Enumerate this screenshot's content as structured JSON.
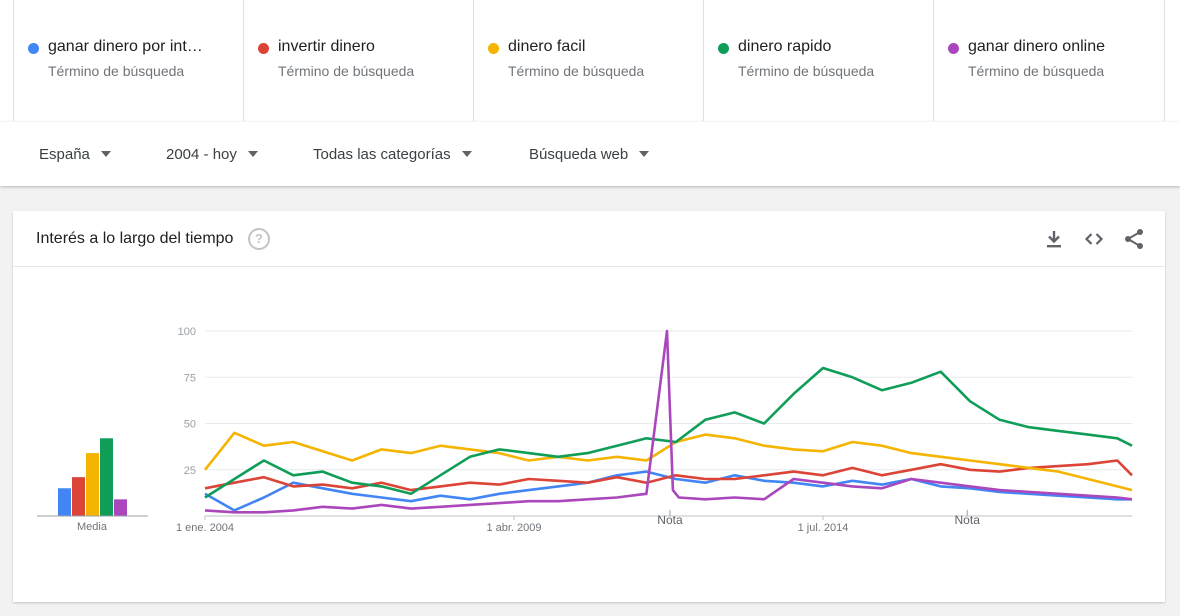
{
  "terms": [
    {
      "name": "ganar dinero por int…",
      "subtitle": "Término de búsqueda",
      "color": "#4285f4"
    },
    {
      "name": "invertir dinero",
      "subtitle": "Término de búsqueda",
      "color": "#db4437"
    },
    {
      "name": "dinero facil",
      "subtitle": "Término de búsqueda",
      "color": "#f4b400"
    },
    {
      "name": "dinero rapido",
      "subtitle": "Término de búsqueda",
      "color": "#0f9d58"
    },
    {
      "name": "ganar dinero online",
      "subtitle": "Término de búsqueda",
      "color": "#ab47bc"
    }
  ],
  "filters": {
    "region": "España",
    "period": "2004 - hoy",
    "category": "Todas las categorías",
    "search_type": "Búsqueda web"
  },
  "card": {
    "title": "Interés a lo largo del tiempo",
    "help_icon_text": "?",
    "actions": [
      "download-icon",
      "embed-code-icon",
      "share-icon"
    ]
  },
  "chart_data": {
    "type": "line",
    "ylim": [
      0,
      100
    ],
    "yticks": [
      "100",
      "75",
      "50",
      "25"
    ],
    "x_tick_labels": [
      "1 ene. 2004",
      "1 abr. 2009",
      "1 jul. 2014"
    ],
    "x_tick_positions": [
      2004.0,
      2009.25,
      2014.5
    ],
    "xlim": [
      2004.0,
      2019.75
    ],
    "annotations": [
      {
        "label": "Nota",
        "x": 2011.9
      },
      {
        "label": "Nota",
        "x": 2016.95
      }
    ],
    "average": {
      "label": "Media",
      "values": [
        15,
        21,
        34,
        42,
        9
      ]
    },
    "series": [
      {
        "color": "#4285f4",
        "x": [
          2004.0,
          2004.5,
          2005.0,
          2005.5,
          2006.0,
          2006.5,
          2007.0,
          2007.5,
          2008.0,
          2008.5,
          2009.0,
          2009.5,
          2010.0,
          2010.5,
          2011.0,
          2011.5,
          2012.0,
          2012.5,
          2013.0,
          2013.5,
          2014.0,
          2014.5,
          2015.0,
          2015.5,
          2016.0,
          2016.5,
          2017.0,
          2017.5,
          2018.0,
          2018.5,
          2019.0,
          2019.5,
          2019.75
        ],
        "values": [
          12,
          3,
          10,
          18,
          15,
          12,
          10,
          8,
          11,
          9,
          12,
          14,
          16,
          18,
          22,
          24,
          20,
          18,
          22,
          19,
          18,
          16,
          19,
          17,
          20,
          16,
          15,
          13,
          12,
          11,
          10,
          9,
          9
        ]
      },
      {
        "color": "#db4437",
        "x": [
          2004.0,
          2004.5,
          2005.0,
          2005.5,
          2006.0,
          2006.5,
          2007.0,
          2007.5,
          2008.0,
          2008.5,
          2009.0,
          2009.5,
          2010.0,
          2010.5,
          2011.0,
          2011.5,
          2012.0,
          2012.5,
          2013.0,
          2013.5,
          2014.0,
          2014.5,
          2015.0,
          2015.5,
          2016.0,
          2016.5,
          2017.0,
          2017.5,
          2018.0,
          2018.5,
          2019.0,
          2019.5,
          2019.75
        ],
        "values": [
          15,
          18,
          21,
          16,
          17,
          15,
          18,
          14,
          16,
          18,
          17,
          20,
          19,
          18,
          21,
          18,
          22,
          20,
          20,
          22,
          24,
          22,
          26,
          22,
          25,
          28,
          25,
          24,
          26,
          27,
          28,
          30,
          22
        ]
      },
      {
        "color": "#f4b400",
        "x": [
          2004.0,
          2004.5,
          2005.0,
          2005.5,
          2006.0,
          2006.5,
          2007.0,
          2007.5,
          2008.0,
          2008.5,
          2009.0,
          2009.5,
          2010.0,
          2010.5,
          2011.0,
          2011.5,
          2012.0,
          2012.5,
          2013.0,
          2013.5,
          2014.0,
          2014.5,
          2015.0,
          2015.5,
          2016.0,
          2016.5,
          2017.0,
          2017.5,
          2018.0,
          2018.5,
          2019.0,
          2019.5,
          2019.75
        ],
        "values": [
          25,
          45,
          38,
          40,
          35,
          30,
          36,
          34,
          38,
          36,
          34,
          30,
          32,
          30,
          32,
          30,
          40,
          44,
          42,
          38,
          36,
          35,
          40,
          38,
          34,
          32,
          30,
          28,
          26,
          24,
          20,
          16,
          14
        ]
      },
      {
        "color": "#0f9d58",
        "x": [
          2004.0,
          2004.5,
          2005.0,
          2005.5,
          2006.0,
          2006.5,
          2007.0,
          2007.5,
          2008.0,
          2008.5,
          2009.0,
          2009.5,
          2010.0,
          2010.5,
          2011.0,
          2011.5,
          2012.0,
          2012.5,
          2013.0,
          2013.5,
          2014.0,
          2014.5,
          2015.0,
          2015.5,
          2016.0,
          2016.5,
          2017.0,
          2017.5,
          2018.0,
          2018.5,
          2019.0,
          2019.5,
          2019.75
        ],
        "values": [
          10,
          20,
          30,
          22,
          24,
          18,
          16,
          12,
          22,
          32,
          36,
          34,
          32,
          34,
          38,
          42,
          40,
          52,
          56,
          50,
          66,
          80,
          75,
          68,
          72,
          78,
          62,
          52,
          48,
          46,
          44,
          42,
          38
        ]
      },
      {
        "color": "#ab47bc",
        "x": [
          2004.0,
          2004.5,
          2005.0,
          2005.5,
          2006.0,
          2006.5,
          2007.0,
          2007.5,
          2008.0,
          2008.5,
          2009.0,
          2009.5,
          2010.0,
          2010.5,
          2011.0,
          2011.5,
          2011.85,
          2011.95,
          2012.05,
          2012.5,
          2013.0,
          2013.5,
          2014.0,
          2014.5,
          2015.0,
          2015.5,
          2016.0,
          2016.5,
          2017.0,
          2017.5,
          2018.0,
          2018.5,
          2019.0,
          2019.5,
          2019.75
        ],
        "values": [
          3,
          2,
          2,
          3,
          5,
          4,
          6,
          4,
          5,
          6,
          7,
          8,
          8,
          9,
          10,
          12,
          100,
          14,
          10,
          9,
          10,
          9,
          20,
          18,
          16,
          15,
          20,
          18,
          16,
          14,
          13,
          12,
          11,
          10,
          9
        ]
      }
    ]
  }
}
